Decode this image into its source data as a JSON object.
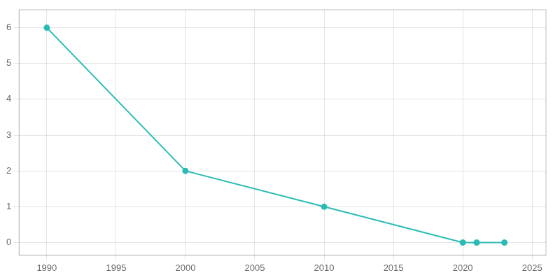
{
  "chart_data": {
    "type": "line",
    "x": [
      1990,
      2000,
      2010,
      2020,
      2021,
      2023
    ],
    "values": [
      6,
      2,
      1,
      0,
      0,
      0
    ],
    "color": "#2abcb4",
    "marker": "circle",
    "xlim": [
      1988,
      2026
    ],
    "ylim": [
      -0.35,
      6.5
    ],
    "xticks": [
      1990,
      1995,
      2000,
      2005,
      2010,
      2015,
      2020,
      2025
    ],
    "yticks": [
      0,
      1,
      2,
      3,
      4,
      5,
      6
    ],
    "grid": true
  }
}
